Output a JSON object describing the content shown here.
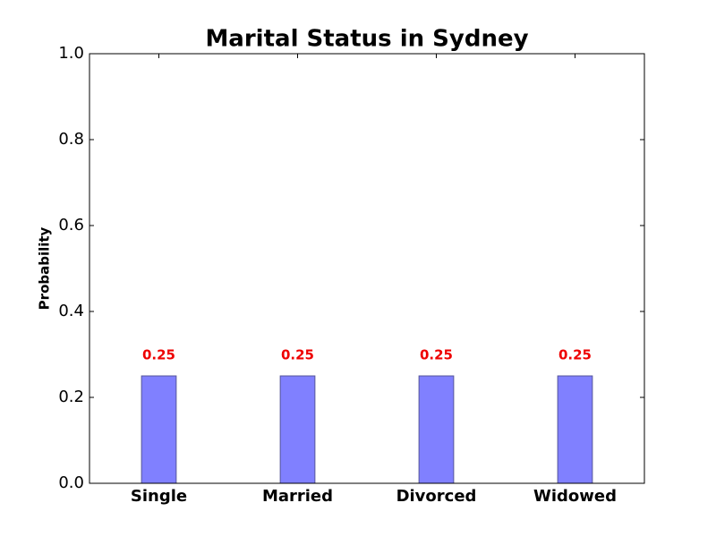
{
  "chart_data": {
    "type": "bar",
    "title": "Marital Status in Sydney",
    "y_label": "Probability",
    "categories": [
      "Single",
      "Married",
      "Divorced",
      "Widowed"
    ],
    "values": [
      0.25,
      0.25,
      0.25,
      0.25
    ],
    "color": "#8080ff",
    "edge_color": "#555599",
    "value_label_color": "#ee0000",
    "ylim": [
      0,
      1
    ],
    "yticks": [
      {
        "value": 0,
        "label": "0.0"
      },
      0.2,
      0.4,
      0.6,
      0.8,
      {
        "value": 1,
        "label": "1.0"
      }
    ],
    "grid": false
  }
}
